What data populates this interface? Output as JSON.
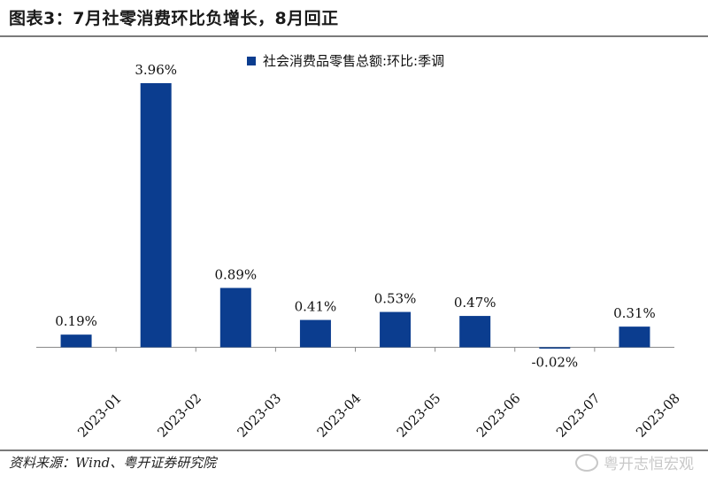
{
  "title": "图表3：7月社零消费环比负增长，8月回正",
  "source": "资料来源：Wind、粤开证券研究院",
  "watermark": "粤开志恒宏观",
  "colors": {
    "bar": "#0b3d8f",
    "axis": "#8a8a8a"
  },
  "chart_data": {
    "type": "bar",
    "categories": [
      "2023-01",
      "2023-02",
      "2023-03",
      "2023-04",
      "2023-05",
      "2023-06",
      "2023-07",
      "2023-08"
    ],
    "series": [
      {
        "name": "社会消费品零售总额:环比:季调",
        "values": [
          0.19,
          3.96,
          0.89,
          0.41,
          0.53,
          0.47,
          -0.02,
          0.31
        ],
        "labels": [
          "0.19%",
          "3.96%",
          "0.89%",
          "0.41%",
          "0.53%",
          "0.47%",
          "-0.02%",
          "0.31%"
        ]
      }
    ],
    "legend_position": "top",
    "grid": false
  }
}
